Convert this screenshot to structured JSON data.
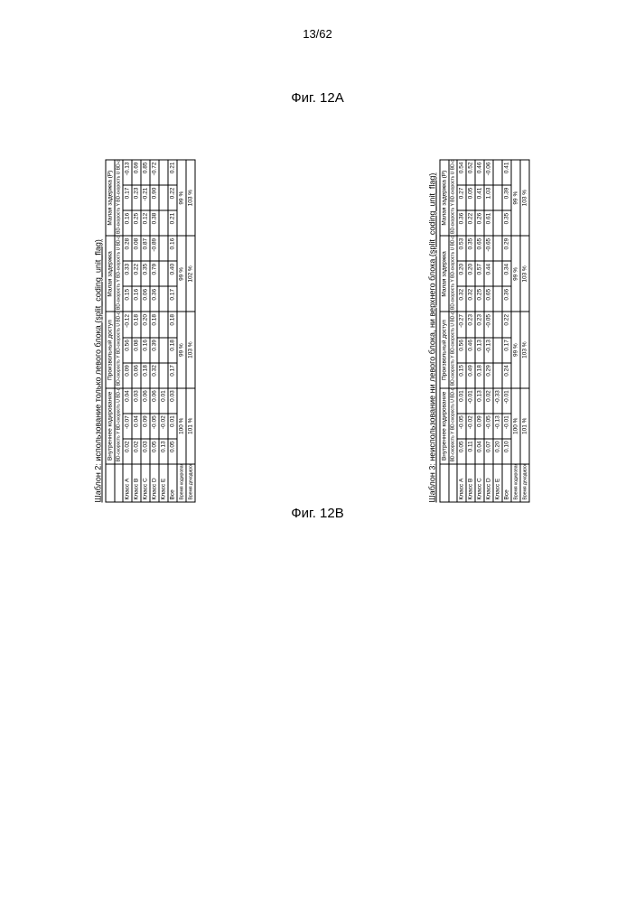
{
  "page_number": "13/62",
  "fig_a_label": "Фиг. 12A",
  "fig_b_label": "Фиг. 12B",
  "table_a": {
    "title": "Шаблон 2: использование только левого блока (split_coding_unit_flag)",
    "sections": [
      "Внутреннее кодирование",
      "Произвольный доступ",
      "Малая задержка",
      "Малая задержка (P)"
    ],
    "sub_header": "BD-скорость Y BD-скорость U BD-скорость V",
    "row_labels": [
      "Класс A",
      "Класс B",
      "Класс C",
      "Класс D",
      "Класс E"
    ],
    "rows": [
      [
        "0.02",
        "-0.07",
        "0.04",
        "0.09",
        "0.56",
        "-0.12",
        "0.15",
        "0.33",
        "0.28",
        "0.16",
        "0.17",
        "-0.13"
      ],
      [
        "0.02",
        "0.04",
        "0.03",
        "0.06",
        "0.08",
        "0.18",
        "0.16",
        "0.22",
        "0.08",
        "0.25",
        "0.23",
        "0.69"
      ],
      [
        "0.03",
        "0.09",
        "0.06",
        "0.18",
        "0.16",
        "0.20",
        "0.06",
        "0.35",
        "0.87",
        "0.12",
        "-0.21",
        "0.85"
      ],
      [
        "0.05",
        "-0.05",
        "0.06",
        "0.32",
        "0.39",
        "0.18",
        "0.36",
        "0.79",
        "-0.89",
        "0.38",
        "0.90",
        "-0.72"
      ],
      [
        "0.13",
        "-0.02",
        "0.01",
        "",
        "",
        "",
        "",
        "",
        "",
        "",
        "",
        ""
      ]
    ],
    "all_label": "Все",
    "all": [
      "0.05",
      "0.01",
      "0.03",
      "0.17",
      "0.18",
      "0.18",
      "0.17",
      "0.40",
      "0.16",
      "0.21",
      "0.22",
      "0.21"
    ],
    "enc_label": "Время кодирования [%]",
    "dec_label": "Время декодирования [%]",
    "enc": [
      "100 %",
      "99 %",
      "99 %",
      "99 %"
    ],
    "dec": [
      "101 %",
      "103 %",
      "102 %",
      "103 %"
    ]
  },
  "table_b": {
    "title": "Шаблон 3: неиспользование ни левого блока, ни верхнего блока (split_coding_unit_flag)",
    "sections": [
      "Внутреннее кодирование",
      "Произвольный доступ",
      "Малая задержка",
      "Малая задержка (P)"
    ],
    "sub_header": "BD-скорость Y BD-скорость U BD-скорость V",
    "row_labels": [
      "Класс A",
      "Класс B",
      "Класс C",
      "Класс D",
      "Класс E"
    ],
    "rows": [
      [
        "0.05",
        "-0.05",
        "0.01",
        "0.15",
        "0.56",
        "-0.27",
        "0.32",
        "0.20",
        "0.53",
        "0.36",
        "0.27",
        "0.54"
      ],
      [
        "0.11",
        "-0.02",
        "-0.01",
        "0.49",
        "0.46",
        "0.23",
        "0.32",
        "0.20",
        "0.35",
        "0.22",
        "0.05",
        "0.52"
      ],
      [
        "0.04",
        "0.09",
        "0.13",
        "0.18",
        "0.13",
        "0.23",
        "0.25",
        "0.57",
        "0.65",
        "0.26",
        "0.41",
        "0.46"
      ],
      [
        "0.07",
        "-0.05",
        "0.02",
        "0.29",
        "-0.13",
        "-0.05",
        "0.65",
        "0.44",
        "-0.65",
        "0.61",
        "1.03",
        "-0.06"
      ],
      [
        "0.20",
        "-0.13",
        "-0.33",
        "",
        "",
        "",
        "",
        "",
        "",
        "",
        "",
        ""
      ]
    ],
    "all_label": "Все",
    "all": [
      "0.10",
      "-0.01",
      "-0.01",
      "0.24",
      "0.17",
      "0.22",
      "0.36",
      "0.34",
      "0.29",
      "0.35",
      "0.39",
      "0.41"
    ],
    "enc_label": "Время кодирования [%]",
    "dec_label": "Время декодирования [%]",
    "enc": [
      "100 %",
      "99 %",
      "99 %",
      "99 %"
    ],
    "dec": [
      "101 %",
      "103 %",
      "103 %",
      "103 %"
    ]
  }
}
